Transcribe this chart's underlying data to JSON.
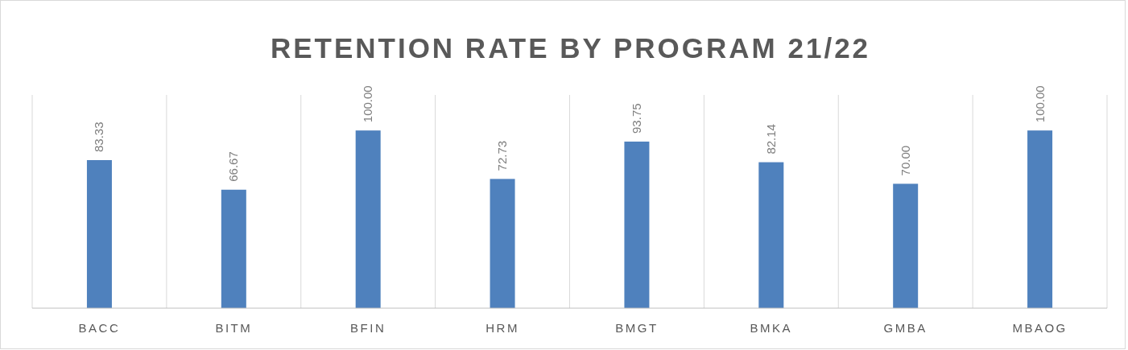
{
  "chart_data": {
    "type": "bar",
    "title": "RETENTION RATE BY PROGRAM 21/22",
    "categories": [
      "BACC",
      "BITM",
      "BFIN",
      "HRM",
      "BMGT",
      "BMKA",
      "GMBA",
      "MBAOG"
    ],
    "values": [
      83.33,
      66.67,
      100.0,
      72.73,
      93.75,
      82.14,
      70.0,
      100.0
    ],
    "value_labels": [
      "83.33",
      "66.67",
      "100.00",
      "72.73",
      "93.75",
      "82.14",
      "70.00",
      "100.00"
    ],
    "color": "#4f81bd",
    "ylim": [
      0,
      120
    ],
    "grid": "x",
    "tick_labels": "x"
  }
}
